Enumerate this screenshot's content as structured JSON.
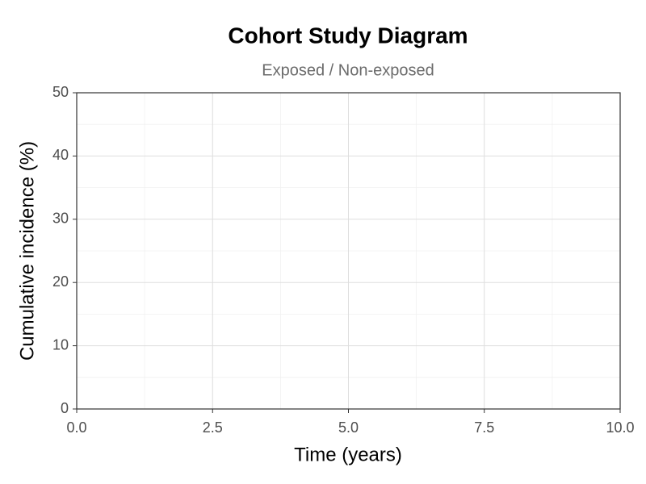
{
  "chart_data": {
    "type": "line",
    "title": "Cohort Study Diagram",
    "subtitle": "Exposed / Non-exposed",
    "xlabel": "Time (years)",
    "ylabel": "Cumulative incidence (%)",
    "xlim": [
      0,
      10
    ],
    "xticks": [
      {
        "value": 0,
        "label": "0.0"
      },
      2.5,
      {
        "value": 5,
        "label": "5.0"
      },
      7.5,
      {
        "value": 10,
        "label": "10.0"
      }
    ],
    "ylim": [
      0,
      50
    ],
    "yticks": [
      0,
      10,
      20,
      30,
      40,
      50
    ],
    "grid": true
  }
}
